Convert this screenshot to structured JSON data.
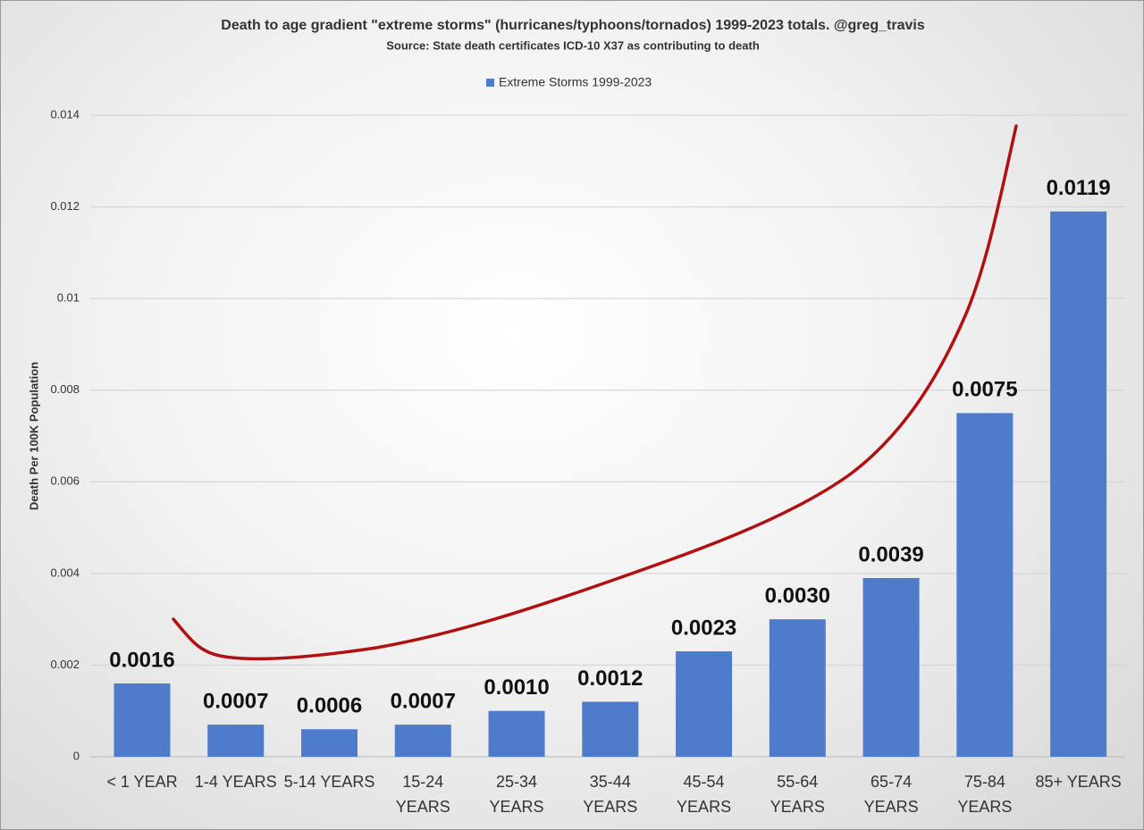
{
  "chart_data": {
    "type": "bar",
    "title": "Death to age gradient \"extreme storms\" (hurricanes/typhoons/tornados) 1999-2023 totals.  @greg_travis",
    "subtitle": "Source: State death certificates ICD-10 X37 as contributing to death",
    "y_label": "Death Per 100K Population",
    "categories": [
      "< 1 YEAR",
      "1-4 YEARS",
      "5-14 YEARS",
      "15-24 YEARS",
      "25-34 YEARS",
      "35-44 YEARS",
      "45-54 YEARS",
      "55-64 YEARS",
      "65-74 YEARS",
      "75-84 YEARS",
      "85+ YEARS"
    ],
    "series": [
      {
        "name": "Extreme Storms 1999-2023",
        "color": "#4e7ccb",
        "values": [
          0.0016,
          0.0007,
          0.0006,
          0.0007,
          0.001,
          0.0012,
          0.0023,
          0.003,
          0.0039,
          0.0075,
          0.0119
        ],
        "value_labels": [
          "0.0016",
          "0.0007",
          "0.0006",
          "0.0007",
          "0.0010",
          "0.0012",
          "0.0023",
          "0.0030",
          "0.0039",
          "0.0075",
          "0.0119"
        ]
      }
    ],
    "ylim": [
      0,
      0.014
    ],
    "yticks": [
      0,
      0.002,
      0.004,
      0.006,
      0.008,
      0.01,
      0.012,
      0.014
    ],
    "grid": true,
    "legend": "top"
  }
}
